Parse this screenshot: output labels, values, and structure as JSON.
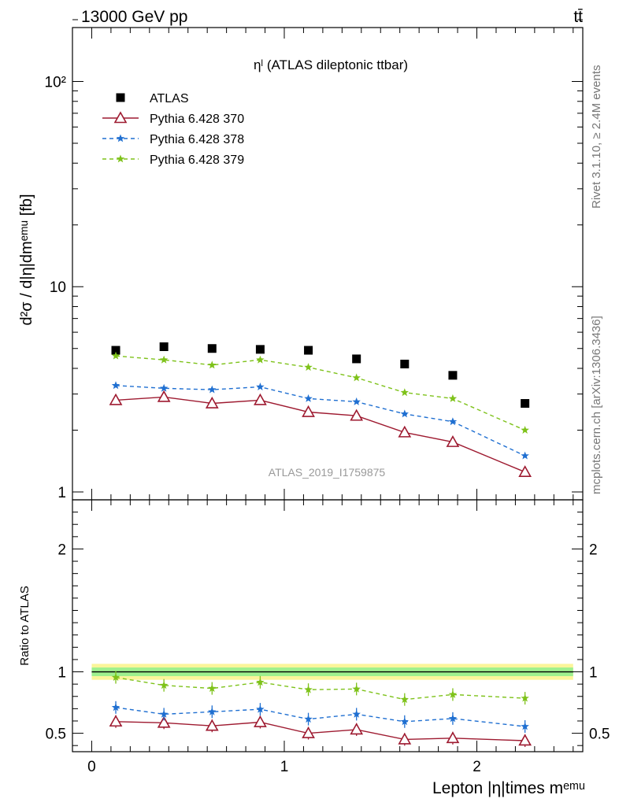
{
  "header": {
    "energy_label": "13000 GeV pp",
    "process_label": "tt̄"
  },
  "side_text": {
    "rivet": "Rivet 3.1.10, ≥ 2.4M events",
    "mcplots": "mcplots.cern.ch [arXiv:1306.3436]"
  },
  "chart_data": [
    {
      "type": "scatter",
      "panel": "main",
      "title": "ηˡ (ATLAS dileptonic ttbar)",
      "watermark": "ATLAS_2019_I1759875",
      "ylabel": "d²σ / d|η|dmᵉᵐᵘ [fb]",
      "yscale": "log",
      "ylim": [
        1,
        200
      ],
      "xlim": [
        -0.1,
        2.55
      ],
      "ytick_labels": [
        "1",
        "10",
        "10²"
      ],
      "legend_position": "top-left",
      "x": [
        0.125,
        0.375,
        0.625,
        0.875,
        1.125,
        1.375,
        1.625,
        1.875,
        2.25
      ],
      "series": [
        {
          "name": "ATLAS",
          "color": "#000000",
          "marker": "square",
          "line": "none",
          "values": [
            4.9,
            5.1,
            5.0,
            4.95,
            4.9,
            4.45,
            4.2,
            3.7,
            2.7
          ]
        },
        {
          "name": "Pythia 6.428 370",
          "color": "#9e1a30",
          "marker": "open-triangle",
          "line": "solid",
          "values": [
            2.8,
            2.9,
            2.7,
            2.8,
            2.45,
            2.35,
            1.95,
            1.75,
            1.25
          ]
        },
        {
          "name": "Pythia 6.428 378",
          "color": "#1f6fd1",
          "marker": "star",
          "line": "dashed",
          "values": [
            3.3,
            3.2,
            3.15,
            3.25,
            2.85,
            2.75,
            2.4,
            2.2,
            1.5
          ]
        },
        {
          "name": "Pythia 6.428 379",
          "color": "#7ec21a",
          "marker": "star",
          "line": "dashed",
          "values": [
            4.6,
            4.4,
            4.15,
            4.4,
            4.05,
            3.6,
            3.05,
            2.85,
            2.0
          ]
        }
      ]
    },
    {
      "type": "scatter",
      "panel": "ratio",
      "ylabel": "Ratio to ATLAS",
      "xlabel": "Lepton |η|times mᵉᵐᵘ",
      "ylim": [
        0.35,
        2.4
      ],
      "xlim": [
        -0.1,
        2.55
      ],
      "ytick_labels": [
        "0.5",
        "1",
        "2"
      ],
      "xtick_labels": [
        "0",
        "1",
        "2"
      ],
      "reference_line": 1.0,
      "band_yellow": [
        0.935,
        1.065
      ],
      "band_green": [
        0.965,
        1.035
      ],
      "x": [
        0.125,
        0.375,
        0.625,
        0.875,
        1.125,
        1.375,
        1.625,
        1.875,
        2.25
      ],
      "series": [
        {
          "name": "Pythia 6.428 370",
          "color": "#9e1a30",
          "marker": "open-triangle",
          "line": "solid",
          "values": [
            0.595,
            0.585,
            0.56,
            0.59,
            0.5,
            0.53,
            0.45,
            0.46,
            0.44
          ]
        },
        {
          "name": "Pythia 6.428 378",
          "color": "#1f6fd1",
          "marker": "star",
          "line": "dashed",
          "values": [
            0.71,
            0.655,
            0.675,
            0.695,
            0.615,
            0.655,
            0.595,
            0.62,
            0.555
          ]
        },
        {
          "name": "Pythia 6.428 379",
          "color": "#7ec21a",
          "marker": "star",
          "line": "dashed",
          "values": [
            0.955,
            0.89,
            0.865,
            0.915,
            0.855,
            0.86,
            0.775,
            0.815,
            0.785
          ]
        }
      ]
    }
  ]
}
